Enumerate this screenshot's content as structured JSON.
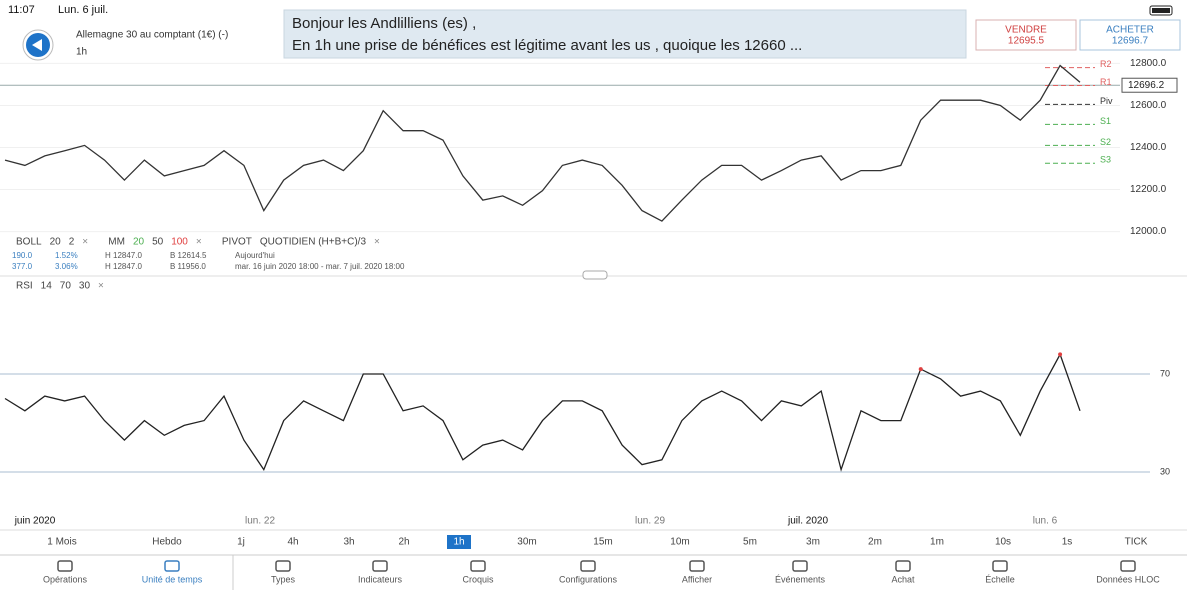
{
  "status": {
    "time": "11:07",
    "date": "Lun. 6 juil."
  },
  "instrument": {
    "name": "Allemagne 30 au comptant (1€) (-)",
    "timeframe": "1h"
  },
  "comment": {
    "lines": [
      "Bonjour les Andlilliens (es) ,",
      "En 1h une prise de bénéfices est légitime avant les us , quoique les 12660 ..."
    ]
  },
  "sell": {
    "label": "VENDRE",
    "price": "12695.5"
  },
  "buy": {
    "label": "ACHETER",
    "price": "12696.7"
  },
  "price_chart": {
    "type": "line",
    "color": "#333333",
    "ylim": [
      11960,
      12840
    ],
    "yticks": [
      {
        "value": 12000,
        "label": "12000.0"
      },
      {
        "value": 12200,
        "label": "12200.0"
      },
      {
        "value": 12400,
        "label": "12400.0"
      },
      {
        "value": 12600,
        "label": "12600.0"
      },
      {
        "value": 12800,
        "label": "12800.0"
      }
    ],
    "current": 12696.2,
    "values": [
      12340,
      12315,
      12360,
      12385,
      12410,
      12340,
      12245,
      12340,
      12265,
      12290,
      12315,
      12385,
      12315,
      12100,
      12245,
      12315,
      12340,
      12290,
      12385,
      12575,
      12480,
      12480,
      12435,
      12265,
      12150,
      12170,
      12125,
      12195,
      12315,
      12340,
      12315,
      12220,
      12100,
      12050,
      12150,
      12245,
      12315,
      12315,
      12245,
      12290,
      12340,
      12360,
      12245,
      12290,
      12290,
      12315,
      12530,
      12625,
      12625,
      12625,
      12600,
      12530,
      12625,
      12790,
      12710
    ],
    "pivots": [
      {
        "label": "R2",
        "value": 12780,
        "color": "#e06060"
      },
      {
        "label": "R1",
        "value": 12695,
        "color": "#e06060"
      },
      {
        "label": "Piv",
        "value": 12605,
        "color": "#333333"
      },
      {
        "label": "S1",
        "value": 12510,
        "color": "#4caf50"
      },
      {
        "label": "S2",
        "value": 12410,
        "color": "#4caf50"
      },
      {
        "label": "S3",
        "value": 12325,
        "color": "#4caf50"
      }
    ]
  },
  "indicators": [
    {
      "parts": [
        "BOLL",
        "20",
        "2"
      ],
      "colors": [
        "#444444",
        "#444444",
        "#444444"
      ]
    },
    {
      "parts": [
        "MM",
        "20",
        "50",
        "100"
      ],
      "colors": [
        "#444444",
        "#4caf50",
        "#444444",
        "#e04040"
      ]
    },
    {
      "parts": [
        "PIVOT",
        "QUOTIDIEN (H+B+C)/3"
      ],
      "colors": [
        "#444444",
        "#444444"
      ]
    }
  ],
  "stats": [
    [
      "190.0",
      "1.52%",
      "H 12847.0",
      "B 12614.5",
      "Aujourd'hui"
    ],
    [
      "377.0",
      "3.06%",
      "H 12847.0",
      "B 11956.0",
      "mar. 16 juin 2020 18:00 - mar. 7 juil. 2020 18:00"
    ]
  ],
  "rsi_chart": {
    "type": "line",
    "legend": [
      "RSI",
      "14",
      "70",
      "30"
    ],
    "color": "#222222",
    "over_color": "#e04040",
    "ylim": [
      15,
      100
    ],
    "yticks": [
      30,
      70
    ],
    "values": [
      60,
      55,
      61,
      59,
      61,
      51,
      43,
      51,
      45,
      49,
      51,
      61,
      43,
      31,
      51,
      59,
      55,
      51,
      70,
      70,
      55,
      57,
      51,
      35,
      41,
      43,
      39,
      51,
      59,
      59,
      55,
      41,
      33,
      35,
      51,
      59,
      63,
      59,
      51,
      59,
      57,
      63,
      31,
      55,
      51,
      51,
      72,
      68,
      61,
      63,
      59,
      45,
      63,
      78,
      55
    ]
  },
  "time_labels": [
    "juin 2020",
    "lun. 22",
    "lun. 29",
    "juil. 2020",
    "lun. 6"
  ],
  "timeframes": {
    "items": [
      "1 Mois",
      "Hebdo",
      "1j",
      "4h",
      "3h",
      "2h",
      "1h",
      "30m",
      "15m",
      "10m",
      "5m",
      "3m",
      "2m",
      "1m",
      "10s",
      "1s",
      "TICK"
    ],
    "selected": 6
  },
  "toolbar": {
    "items": [
      "Opérations",
      "Unité de temps",
      "Types",
      "Indicateurs",
      "Croquis",
      "Configurations",
      "Afficher",
      "Événements",
      "Achat",
      "Échelle",
      "Données HLOC"
    ],
    "selected": 1
  }
}
